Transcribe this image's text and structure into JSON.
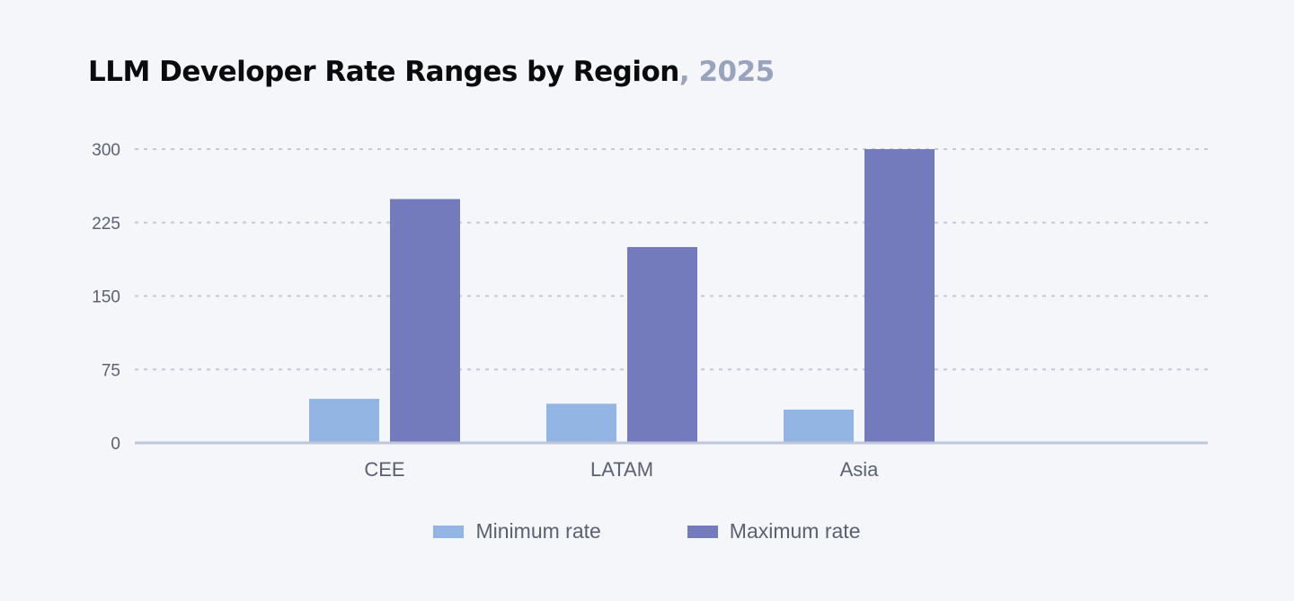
{
  "title": {
    "main": "LLM Developer Rate Ranges by Region",
    "accent": ", 2025"
  },
  "colors": {
    "background": "#f4f6fa",
    "min_series": "#93b5e3",
    "max_series": "#737bbc",
    "grid": "#c4c9d8",
    "axis": "#bfc6da",
    "tick_text": "#5b6173",
    "title_accent": "#9aa3bd"
  },
  "chart_data": {
    "type": "bar",
    "categories": [
      "CEE",
      "LATAM",
      "Asia"
    ],
    "series": [
      {
        "name": "Minimum rate",
        "values": [
          45,
          40,
          34
        ]
      },
      {
        "name": "Maximum rate",
        "values": [
          249,
          200,
          300
        ]
      }
    ],
    "yticks": [
      "0",
      "75",
      "150",
      "225",
      "300"
    ],
    "ylim": [
      0,
      300
    ],
    "grid": true,
    "legend_position": "bottom-center"
  }
}
